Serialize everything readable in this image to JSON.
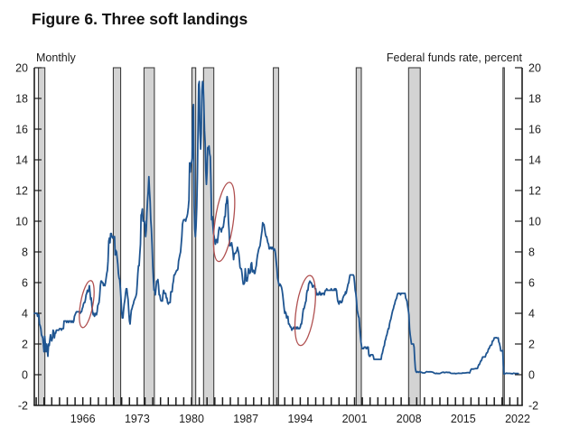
{
  "figure": {
    "title": "Figure 6. Three soft landings",
    "left_note": "Monthly",
    "right_note": "Federal funds rate, percent"
  },
  "chart_data": {
    "type": "line",
    "title": "Figure 6. Three soft landings",
    "frequency_note": "Monthly",
    "ylabel": "Federal funds rate, percent",
    "ylim": [
      -2,
      20
    ],
    "y_ticks": [
      -2,
      0,
      2,
      4,
      6,
      8,
      10,
      12,
      14,
      16,
      18,
      20
    ],
    "x_domain": [
      1959.75,
      2022.583
    ],
    "x_minor_tick_every_years": 1,
    "x_tick_label_years": [
      1966,
      1973,
      1980,
      1987,
      1994,
      2001,
      2008,
      2015,
      2022
    ],
    "grid": false,
    "legend": "none",
    "series": [
      {
        "name": "Federal funds rate, percent (monthly)",
        "x_start_year": 1959.75,
        "x_step_years": 0.08333333,
        "values": [
          4.0,
          4.0,
          4.0,
          4.0,
          4.0,
          3.8,
          3.9,
          3.9,
          3.3,
          3.2,
          3.0,
          2.6,
          2.5,
          2.4,
          2.0,
          1.5,
          2.5,
          2.0,
          1.5,
          2.0,
          1.7,
          1.2,
          2.0,
          1.9,
          2.3,
          2.6,
          2.3,
          2.2,
          2.4,
          2.9,
          2.8,
          2.4,
          2.7,
          2.7,
          2.9,
          2.9,
          2.9,
          2.9,
          2.9,
          3.0,
          3.0,
          3.0,
          2.9,
          3.0,
          3.0,
          3.0,
          3.5,
          3.5,
          3.5,
          3.5,
          3.4,
          3.5,
          3.5,
          3.4,
          3.5,
          3.5,
          3.5,
          3.4,
          3.5,
          3.5,
          3.4,
          3.5,
          3.8,
          3.9,
          4.0,
          4.1,
          4.1,
          4.1,
          4.1,
          4.1,
          4.1,
          4.0,
          4.1,
          4.1,
          4.3,
          4.4,
          4.6,
          4.7,
          4.7,
          4.9,
          5.2,
          5.3,
          5.5,
          5.4,
          5.5,
          5.8,
          5.4,
          4.9,
          5.0,
          4.5,
          4.1,
          3.9,
          4.0,
          3.8,
          3.9,
          4.0,
          3.9,
          4.1,
          4.5,
          4.6,
          4.7,
          5.1,
          5.8,
          6.1,
          6.1,
          6.0,
          6.0,
          5.8,
          5.9,
          5.8,
          6.0,
          6.3,
          6.6,
          6.8,
          7.4,
          8.7,
          8.9,
          8.6,
          9.2,
          9.2,
          9.0,
          8.9,
          9.0,
          9.0,
          9.0,
          7.8,
          8.1,
          8.0,
          7.6,
          7.2,
          6.6,
          6.3,
          6.2,
          5.6,
          4.9,
          4.1,
          3.7,
          3.7,
          4.2,
          4.6,
          4.9,
          5.3,
          5.6,
          5.6,
          5.2,
          4.9,
          4.1,
          3.5,
          3.3,
          3.8,
          4.2,
          4.3,
          4.5,
          4.6,
          4.8,
          4.9,
          5.0,
          5.1,
          5.3,
          5.9,
          6.6,
          7.1,
          7.1,
          7.8,
          8.5,
          10.4,
          10.5,
          10.8,
          10.0,
          10.0,
          10.0,
          9.7,
          9.0,
          9.4,
          10.5,
          11.3,
          11.9,
          12.9,
          12.0,
          11.3,
          10.1,
          9.5,
          8.5,
          7.1,
          6.2,
          5.5,
          5.5,
          5.2,
          5.6,
          6.1,
          6.1,
          6.2,
          5.8,
          5.2,
          5.2,
          4.9,
          4.8,
          4.8,
          4.8,
          5.3,
          5.5,
          5.3,
          5.3,
          5.3,
          5.0,
          5.0,
          4.7,
          4.6,
          4.7,
          4.7,
          4.7,
          5.4,
          5.4,
          5.4,
          5.9,
          6.1,
          6.5,
          6.5,
          6.6,
          6.7,
          6.8,
          6.8,
          6.9,
          7.4,
          7.6,
          7.8,
          8.0,
          8.5,
          9.0,
          9.8,
          10.0,
          10.1,
          10.1,
          10.1,
          10.0,
          10.2,
          10.3,
          10.5,
          10.9,
          11.4,
          13.8,
          13.2,
          13.8,
          13.8,
          14.1,
          17.2,
          17.6,
          11.0,
          9.5,
          9.0,
          9.6,
          10.9,
          12.8,
          15.9,
          18.9,
          19.1,
          15.9,
          14.7,
          15.7,
          18.5,
          19.1,
          19.0,
          17.8,
          15.9,
          15.1,
          13.3,
          12.4,
          13.2,
          14.8,
          14.7,
          14.9,
          14.4,
          14.2,
          12.6,
          10.1,
          10.3,
          9.7,
          9.2,
          9.0,
          8.7,
          8.5,
          8.8,
          8.8,
          8.6,
          9.0,
          9.4,
          9.6,
          9.5,
          9.5,
          9.3,
          9.5,
          9.6,
          9.6,
          9.9,
          10.3,
          10.3,
          11.1,
          11.2,
          11.6,
          11.3,
          10.0,
          9.4,
          8.4,
          8.4,
          8.5,
          8.6,
          8.3,
          8.0,
          7.5,
          7.9,
          7.9,
          7.9,
          8.0,
          8.1,
          8.3,
          8.1,
          7.9,
          7.5,
          7.0,
          6.9,
          6.9,
          6.6,
          6.2,
          5.9,
          5.9,
          6.0,
          6.9,
          6.4,
          6.1,
          6.1,
          6.4,
          6.9,
          6.7,
          6.6,
          6.7,
          7.2,
          7.3,
          6.7,
          6.8,
          6.8,
          6.6,
          6.6,
          6.9,
          7.1,
          7.5,
          7.8,
          8.0,
          8.2,
          8.3,
          8.4,
          8.8,
          9.1,
          9.4,
          9.9,
          9.8,
          9.8,
          9.5,
          9.2,
          9.0,
          9.0,
          8.8,
          8.6,
          8.5,
          8.2,
          8.2,
          8.3,
          8.3,
          8.2,
          8.3,
          8.2,
          8.1,
          8.2,
          8.1,
          7.8,
          7.3,
          6.9,
          6.3,
          6.1,
          5.9,
          5.8,
          5.9,
          5.8,
          5.7,
          5.5,
          5.2,
          4.8,
          4.4,
          4.0,
          4.1,
          4.0,
          3.7,
          3.8,
          3.8,
          3.3,
          3.3,
          3.2,
          3.1,
          3.1,
          2.9,
          3.0,
          3.0,
          3.1,
          3.0,
          3.0,
          3.0,
          3.1,
          3.0,
          3.1,
          3.0,
          3.0,
          3.0,
          3.1,
          3.3,
          3.3,
          3.6,
          4.0,
          4.3,
          4.3,
          4.5,
          4.7,
          4.8,
          5.3,
          5.5,
          5.5,
          5.9,
          6.0,
          6.1,
          6.0,
          6.0,
          5.9,
          5.7,
          5.8,
          5.8,
          5.8,
          5.6,
          5.6,
          5.2,
          5.3,
          5.2,
          5.2,
          5.3,
          5.4,
          5.2,
          5.3,
          5.2,
          5.3,
          5.3,
          5.3,
          5.2,
          5.4,
          5.5,
          5.5,
          5.6,
          5.5,
          5.5,
          5.5,
          5.5,
          5.5,
          5.5,
          5.6,
          5.5,
          5.5,
          5.5,
          5.5,
          5.6,
          5.5,
          5.6,
          5.5,
          5.1,
          4.8,
          4.7,
          4.6,
          4.8,
          4.8,
          4.7,
          4.7,
          4.8,
          5.0,
          5.1,
          5.2,
          5.2,
          5.4,
          5.3,
          5.5,
          5.7,
          5.9,
          6.0,
          6.3,
          6.5,
          6.5,
          6.5,
          6.5,
          6.5,
          6.5,
          6.4,
          6.0,
          5.5,
          5.3,
          4.8,
          4.2,
          4.0,
          3.8,
          3.7,
          3.1,
          2.5,
          2.1,
          1.8,
          1.7,
          1.7,
          1.7,
          1.8,
          1.8,
          1.8,
          1.7,
          1.7,
          1.8,
          1.8,
          1.3,
          1.2,
          1.2,
          1.3,
          1.3,
          1.3,
          1.3,
          1.2,
          1.0,
          1.0,
          1.0,
          1.0,
          1.0,
          1.0,
          1.0,
          1.0,
          1.0,
          1.0,
          1.0,
          1.0,
          1.3,
          1.4,
          1.6,
          1.8,
          1.9,
          2.2,
          2.3,
          2.5,
          2.6,
          2.8,
          3.0,
          3.0,
          3.3,
          3.5,
          3.6,
          3.8,
          4.0,
          4.2,
          4.3,
          4.5,
          4.6,
          4.8,
          4.9,
          5.0,
          5.2,
          5.3,
          5.3,
          5.3,
          5.3,
          5.2,
          5.3,
          5.3,
          5.3,
          5.3,
          5.3,
          5.3,
          5.3,
          5.0,
          4.9,
          4.8,
          4.5,
          4.2,
          3.9,
          3.0,
          2.6,
          2.3,
          2.0,
          2.0,
          2.0,
          2.0,
          1.8,
          1.0,
          0.4,
          0.2,
          0.15,
          0.2,
          0.18,
          0.15,
          0.18,
          0.21,
          0.16,
          0.16,
          0.15,
          0.12,
          0.12,
          0.12,
          0.11,
          0.13,
          0.16,
          0.2,
          0.2,
          0.18,
          0.18,
          0.19,
          0.19,
          0.19,
          0.19,
          0.18,
          0.17,
          0.16,
          0.14,
          0.1,
          0.09,
          0.09,
          0.07,
          0.1,
          0.08,
          0.07,
          0.08,
          0.07,
          0.08,
          0.1,
          0.13,
          0.14,
          0.16,
          0.16,
          0.16,
          0.13,
          0.14,
          0.16,
          0.16,
          0.16,
          0.14,
          0.15,
          0.14,
          0.15,
          0.11,
          0.09,
          0.09,
          0.08,
          0.08,
          0.09,
          0.08,
          0.09,
          0.07,
          0.07,
          0.08,
          0.09,
          0.09,
          0.1,
          0.09,
          0.09,
          0.09,
          0.09,
          0.09,
          0.12,
          0.11,
          0.11,
          0.11,
          0.12,
          0.12,
          0.13,
          0.13,
          0.14,
          0.14,
          0.12,
          0.12,
          0.24,
          0.34,
          0.38,
          0.36,
          0.37,
          0.37,
          0.38,
          0.39,
          0.4,
          0.4,
          0.4,
          0.41,
          0.54,
          0.65,
          0.66,
          0.79,
          0.9,
          0.91,
          1.04,
          1.15,
          1.16,
          1.15,
          1.15,
          1.16,
          1.3,
          1.41,
          1.42,
          1.51,
          1.69,
          1.7,
          1.82,
          1.91,
          1.91,
          1.95,
          2.19,
          2.2,
          2.27,
          2.4,
          2.4,
          2.41,
          2.42,
          2.39,
          2.38,
          2.4,
          2.13,
          2.04,
          1.83,
          1.55,
          1.55,
          1.55,
          1.58,
          0.65,
          0.05,
          0.05,
          0.08,
          0.09,
          0.1,
          0.09,
          0.09,
          0.09,
          0.09,
          0.09,
          0.08,
          0.07,
          0.07,
          0.06,
          0.08,
          0.1,
          0.09,
          0.08,
          0.08,
          0.08,
          0.08,
          0.08,
          0.08
        ]
      }
    ],
    "recession_bands": [
      [
        1960.29,
        1961.12
      ],
      [
        1969.92,
        1970.87
      ],
      [
        1973.87,
        1975.21
      ],
      [
        1980.04,
        1980.54
      ],
      [
        1981.54,
        1982.87
      ],
      [
        1990.54,
        1991.21
      ],
      [
        2001.21,
        2001.87
      ],
      [
        2007.96,
        2009.46
      ],
      [
        2020.12,
        2020.29
      ]
    ],
    "soft_landing_ellipses": [
      {
        "cx": 1966.5,
        "cy": 4.6,
        "rx_years": 0.8,
        "ry_units": 1.55,
        "tilt_deg": 10
      },
      {
        "cx": 1984.2,
        "cy": 9.95,
        "rx_years": 1.17,
        "ry_units": 2.6,
        "tilt_deg": 8
      },
      {
        "cx": 1994.65,
        "cy": 4.18,
        "rx_years": 1.17,
        "ry_units": 2.3,
        "tilt_deg": 8
      }
    ],
    "colors": {
      "line": "#1f5591",
      "recession_fill": "#d3d3d3",
      "recession_border": "#2f2f2f",
      "ellipse": "#b05050",
      "axis": "#1c1c1c",
      "text": "#1c1c1c"
    }
  }
}
